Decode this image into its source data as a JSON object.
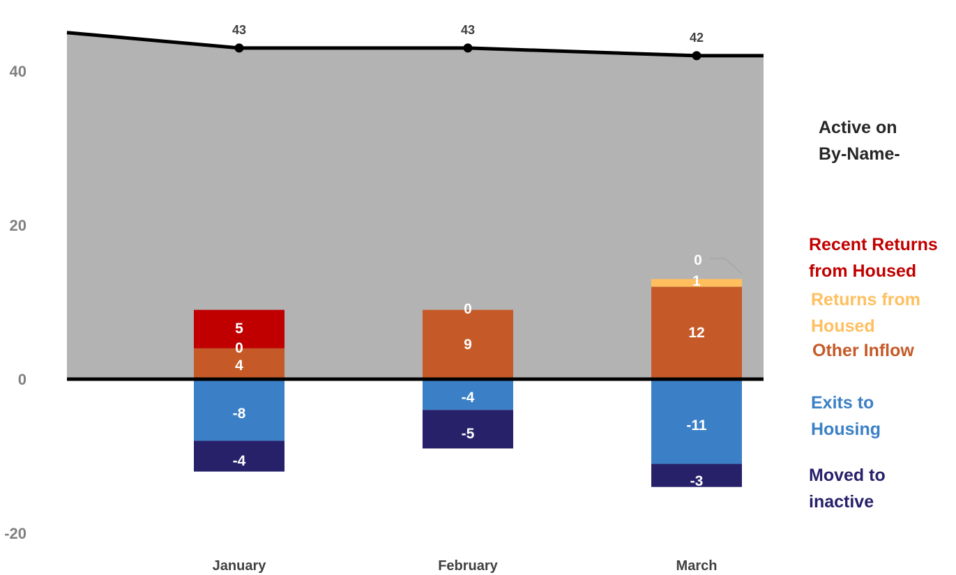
{
  "chart_data": {
    "type": "bar",
    "categories": [
      "January",
      "February",
      "March"
    ],
    "yticks": [
      "40",
      "20",
      "0",
      "-20"
    ],
    "ylim": [
      -20,
      40
    ],
    "area_series": {
      "name": "Active on By-Name-",
      "values": [
        43,
        43,
        42
      ],
      "labels": [
        "43",
        "43",
        "42"
      ],
      "color": "#b3b3b3",
      "line_color": "#000000"
    },
    "series": [
      {
        "key": "recent",
        "name": "Recent Returns from Housed",
        "color": "#c00000",
        "values": [
          5,
          0,
          0
        ],
        "labels": [
          "5",
          "",
          "0"
        ]
      },
      {
        "key": "returns",
        "name": "Returns from Housed",
        "color": "#ffbf5f",
        "values": [
          0,
          0,
          1
        ],
        "labels": [
          "0",
          "0",
          "1"
        ]
      },
      {
        "key": "other",
        "name": "Other Inflow",
        "color": "#c55a28",
        "values": [
          4,
          9,
          12
        ],
        "labels": [
          "4",
          "9",
          "12"
        ]
      },
      {
        "key": "exits",
        "name": "Exits to Housing",
        "color": "#3b80c6",
        "values": [
          -8,
          -4,
          -11
        ],
        "labels": [
          "-8",
          "-4",
          "-11"
        ]
      },
      {
        "key": "inactive",
        "name": "Moved to inactive",
        "color": "#27216a",
        "values": [
          -4,
          -5,
          -3
        ],
        "labels": [
          "-4",
          "-5",
          "-3"
        ]
      }
    ],
    "legend": [
      {
        "lines": [
          "Active on",
          "By-Name-"
        ],
        "color": "#262626"
      },
      {
        "lines": [
          "Recent Returns",
          "from Housed"
        ],
        "color": "#c00000"
      },
      {
        "lines": [
          "Returns from",
          "Housed"
        ],
        "color": "#ffbf5f"
      },
      {
        "lines": [
          "Other Inflow"
        ],
        "color": "#c55a28"
      },
      {
        "lines": [
          "Exits to",
          "Housing"
        ],
        "color": "#3b80c6"
      },
      {
        "lines": [
          "Moved to",
          "inactive"
        ],
        "color": "#27216a"
      }
    ],
    "legend_placement": "right",
    "grid": false
  }
}
